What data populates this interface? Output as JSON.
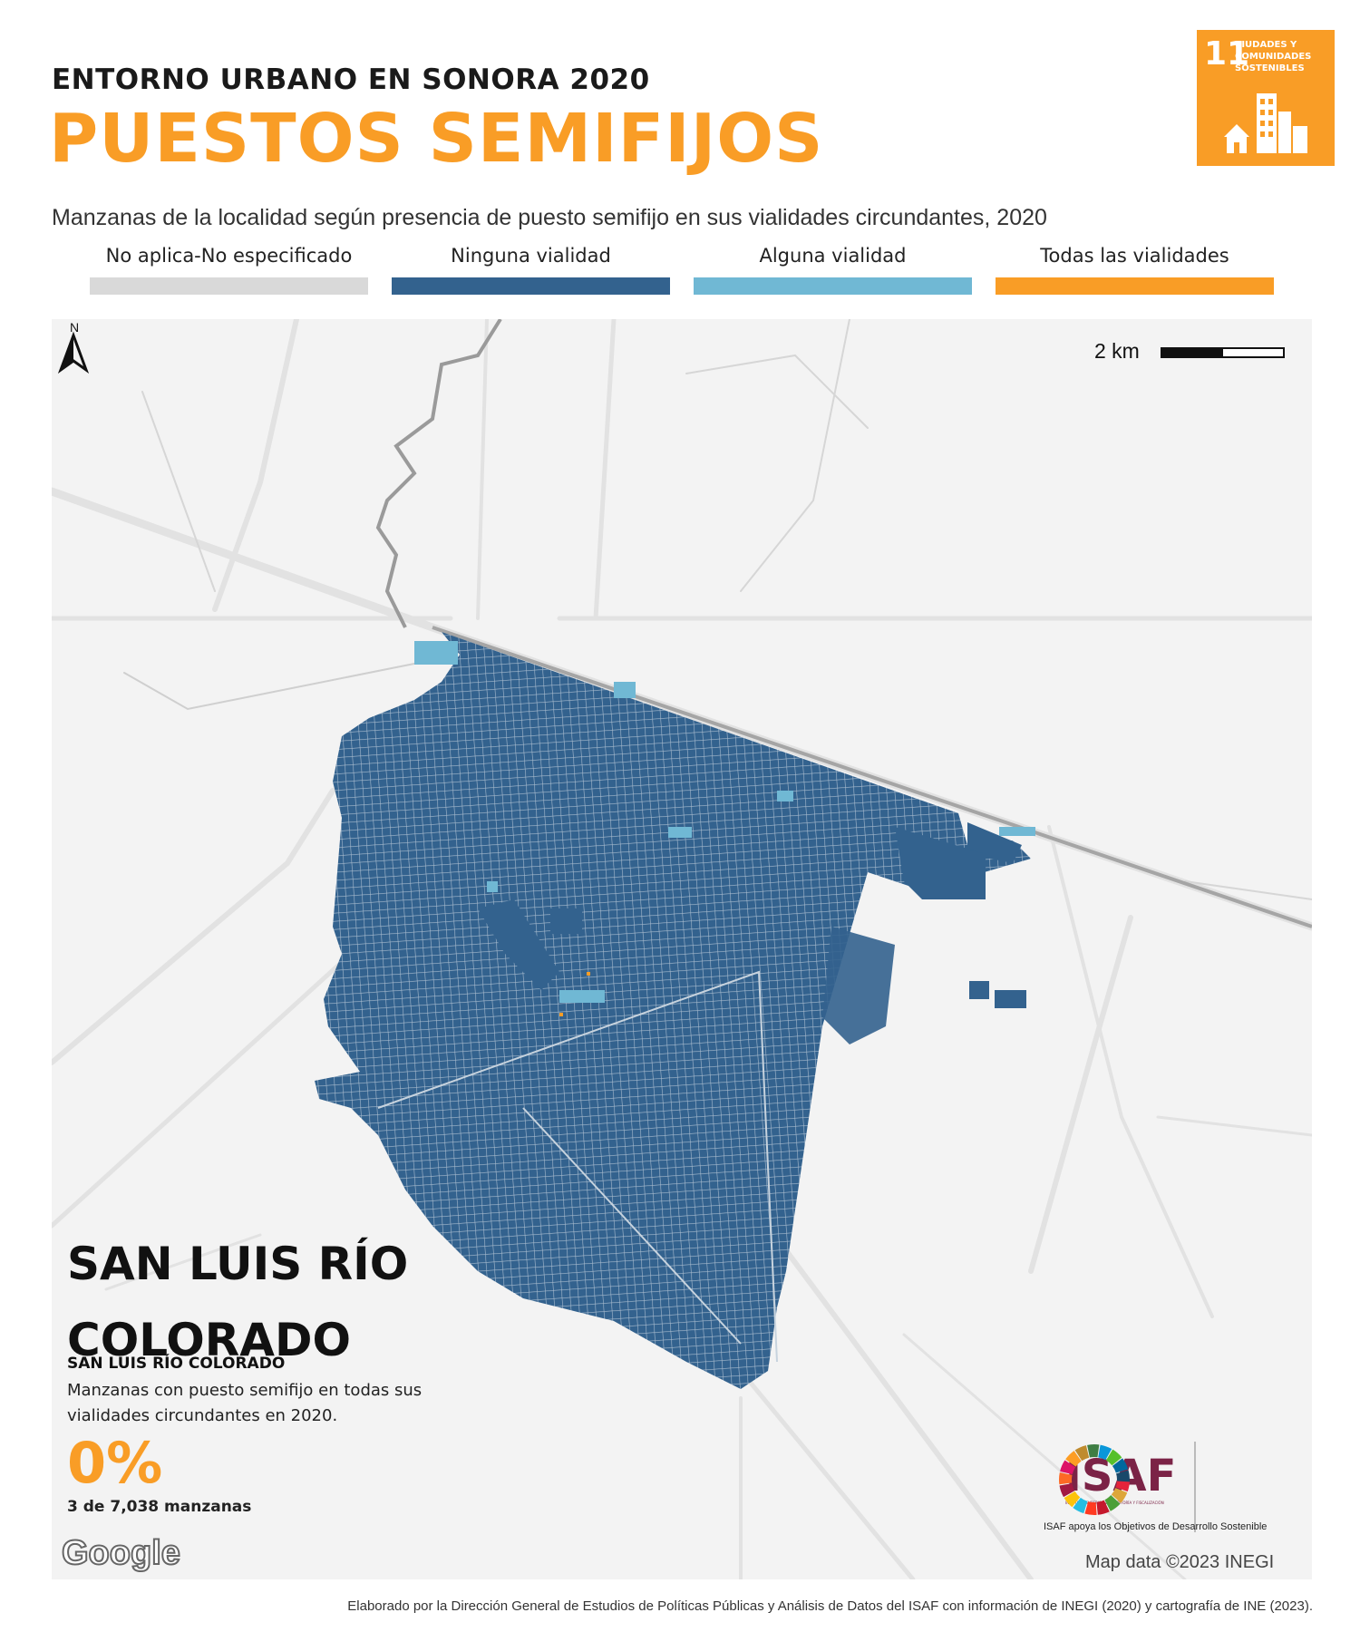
{
  "header": {
    "kicker": "ENTORNO URBANO EN SONORA 2020",
    "title": "PUESTOS SEMIFIJOS"
  },
  "sdg_badge": {
    "number": "11",
    "text": "CIUDADES Y COMUNIDADES SOSTENIBLES",
    "color": "#f99d26"
  },
  "subtitle": "Manzanas de la localidad según presencia de puesto semifijo en sus vialidades circundantes, 2020",
  "legend": [
    {
      "label": "No aplica-No especificado",
      "color": "#d9d9d9"
    },
    {
      "label": "Ninguna vialidad",
      "color": "#33628e"
    },
    {
      "label": "Alguna vialidad",
      "color": "#70b8d4"
    },
    {
      "label": "Todas las vialidades",
      "color": "#f99d26"
    }
  ],
  "map": {
    "scale_label": "2 km",
    "north_label": "N",
    "background_color": "#f3f3f3",
    "road_color": "#e2e2e2",
    "block_color": "#33628e",
    "google_label": "Google",
    "credit": "Map data ©2023 INEGI"
  },
  "place": {
    "name": "SAN LUIS RÍO COLORADO",
    "name_small": "SAN LUIS RÍO COLORADO",
    "description": "Manzanas con puesto semifijo en todas sus vialidades circundantes en 2020.",
    "percent": "0%",
    "count": "3 de 7,038 manzanas"
  },
  "isaf": {
    "logo_text": "ISAF",
    "logo_sub": "INSTITUTO SUPERIOR DE AUDITORÍA Y FISCALIZACIÓN",
    "caption": "ISAF apoya los Objetivos de Desarrollo Sostenible"
  },
  "footer": "Elaborado por la Dirección General de Estudios de Políticas Públicas y Análisis de Datos del ISAF con información de INEGI (2020) y cartografía de INE (2023)."
}
